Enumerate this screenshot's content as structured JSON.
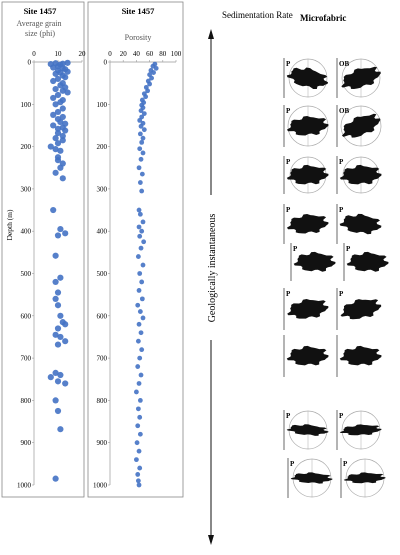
{
  "colors": {
    "point": "#4472C4",
    "text": "#222222",
    "frame": "#888888",
    "blob": "#111111",
    "circle": "#aaaaaa"
  },
  "chart_data": [
    {
      "type": "scatter",
      "title": "Site 1457",
      "subtitle": "Average grain size (phi)",
      "xlabel": "",
      "ylabel": "Depth (m)",
      "xlim": [
        0,
        20
      ],
      "ylim": [
        0,
        1000
      ],
      "y_inverted": true,
      "x_ticks": [
        "0",
        "10",
        "20"
      ],
      "y_ticks": [
        "0",
        "100",
        "200",
        "300",
        "400",
        "500",
        "600",
        "700",
        "800",
        "900",
        "1000"
      ],
      "points": [
        [
          7,
          5
        ],
        [
          9,
          3
        ],
        [
          11,
          6
        ],
        [
          12,
          4
        ],
        [
          14,
          2
        ],
        [
          10,
          10
        ],
        [
          8,
          13
        ],
        [
          12,
          15
        ],
        [
          13,
          17
        ],
        [
          10,
          20
        ],
        [
          11,
          25
        ],
        [
          14,
          23
        ],
        [
          9,
          28
        ],
        [
          12,
          32
        ],
        [
          13,
          36
        ],
        [
          10,
          40
        ],
        [
          8,
          45
        ],
        [
          12,
          50
        ],
        [
          11,
          55
        ],
        [
          13,
          60
        ],
        [
          9,
          64
        ],
        [
          12,
          68
        ],
        [
          14,
          72
        ],
        [
          10,
          78
        ],
        [
          8,
          85
        ],
        [
          12,
          90
        ],
        [
          11,
          95
        ],
        [
          9,
          100
        ],
        [
          12,
          110
        ],
        [
          10,
          118
        ],
        [
          8,
          125
        ],
        [
          12,
          130
        ],
        [
          10,
          135
        ],
        [
          11,
          142
        ],
        [
          13,
          146
        ],
        [
          8,
          150
        ],
        [
          12,
          155
        ],
        [
          10,
          158
        ],
        [
          13,
          162
        ],
        [
          10,
          168
        ],
        [
          12,
          175
        ],
        [
          9,
          180
        ],
        [
          12,
          185
        ],
        [
          10,
          192
        ],
        [
          7,
          200
        ],
        [
          9,
          206
        ],
        [
          11,
          210
        ],
        [
          10,
          225
        ],
        [
          10,
          232
        ],
        [
          12,
          240
        ],
        [
          11,
          250
        ],
        [
          9,
          262
        ],
        [
          12,
          275
        ],
        [
          8,
          350
        ],
        [
          11,
          395
        ],
        [
          10,
          410
        ],
        [
          13,
          405
        ],
        [
          9,
          458
        ],
        [
          11,
          510
        ],
        [
          9,
          520
        ],
        [
          10,
          545
        ],
        [
          9,
          560
        ],
        [
          10,
          575
        ],
        [
          11,
          600
        ],
        [
          12,
          615
        ],
        [
          10,
          630
        ],
        [
          13,
          620
        ],
        [
          9,
          645
        ],
        [
          11,
          650
        ],
        [
          13,
          660
        ],
        [
          10,
          668
        ],
        [
          9,
          735
        ],
        [
          7,
          745
        ],
        [
          11,
          740
        ],
        [
          10,
          755
        ],
        [
          13,
          760
        ],
        [
          9,
          800
        ],
        [
          10,
          825
        ],
        [
          11,
          868
        ],
        [
          9,
          985
        ]
      ]
    },
    {
      "type": "scatter",
      "title": "Site 1457",
      "subtitle": "Porosity",
      "xlabel": "",
      "ylabel": "",
      "xlim": [
        0,
        100
      ],
      "ylim": [
        0,
        1000
      ],
      "y_inverted": true,
      "x_ticks": [
        "0",
        "20",
        "40",
        "60",
        "80",
        "100"
      ],
      "y_ticks": [
        "0",
        "100",
        "200",
        "300",
        "400",
        "500",
        "600",
        "700",
        "800",
        "900",
        "1000"
      ],
      "points": [
        [
          68,
          5
        ],
        [
          65,
          10
        ],
        [
          70,
          15
        ],
        [
          62,
          20
        ],
        [
          66,
          25
        ],
        [
          60,
          30
        ],
        [
          63,
          38
        ],
        [
          58,
          45
        ],
        [
          60,
          52
        ],
        [
          55,
          60
        ],
        [
          57,
          68
        ],
        [
          52,
          75
        ],
        [
          54,
          82
        ],
        [
          49,
          90
        ],
        [
          51,
          96
        ],
        [
          48,
          102
        ],
        [
          50,
          108
        ],
        [
          47,
          115
        ],
        [
          52,
          122
        ],
        [
          48,
          130
        ],
        [
          45,
          138
        ],
        [
          50,
          145
        ],
        [
          47,
          152
        ],
        [
          52,
          160
        ],
        [
          46,
          170
        ],
        [
          50,
          180
        ],
        [
          48,
          190
        ],
        [
          45,
          205
        ],
        [
          50,
          215
        ],
        [
          47,
          230
        ],
        [
          44,
          250
        ],
        [
          49,
          265
        ],
        [
          46,
          285
        ],
        [
          48,
          305
        ],
        [
          44,
          350
        ],
        [
          46,
          360
        ],
        [
          50,
          378
        ],
        [
          44,
          390
        ],
        [
          48,
          400
        ],
        [
          45,
          412
        ],
        [
          51,
          425
        ],
        [
          47,
          440
        ],
        [
          43,
          460
        ],
        [
          50,
          480
        ],
        [
          45,
          500
        ],
        [
          48,
          520
        ],
        [
          44,
          540
        ],
        [
          49,
          560
        ],
        [
          42,
          575
        ],
        [
          46,
          590
        ],
        [
          50,
          605
        ],
        [
          44,
          620
        ],
        [
          47,
          640
        ],
        [
          43,
          660
        ],
        [
          48,
          680
        ],
        [
          45,
          700
        ],
        [
          42,
          720
        ],
        [
          47,
          740
        ],
        [
          44,
          760
        ],
        [
          40,
          780
        ],
        [
          46,
          800
        ],
        [
          43,
          820
        ],
        [
          45,
          840
        ],
        [
          42,
          860
        ],
        [
          46,
          880
        ],
        [
          41,
          900
        ],
        [
          44,
          920
        ],
        [
          40,
          940
        ],
        [
          45,
          960
        ],
        [
          42,
          975
        ],
        [
          43,
          990
        ],
        [
          44,
          1000
        ]
      ]
    }
  ],
  "sedimentation": {
    "title": "Sedimentation Rate",
    "label": "Geologically instantaneous"
  },
  "microfabric": {
    "title": "Microfabric",
    "panels": [
      {
        "left_label": "P",
        "right_label": "OB"
      },
      {
        "left_label": "P",
        "right_label": "OB"
      },
      {
        "left_label": "P",
        "right_label": "P"
      },
      {
        "left_label": "P",
        "right_label": "P"
      },
      {
        "left_label": "P",
        "right_label": "P"
      },
      {
        "left_label": "P",
        "right_label": "P"
      },
      {
        "left_label": "",
        "right_label": ""
      },
      {
        "left_label": "P",
        "right_label": "P"
      },
      {
        "left_label": "P",
        "right_label": "P"
      }
    ]
  }
}
